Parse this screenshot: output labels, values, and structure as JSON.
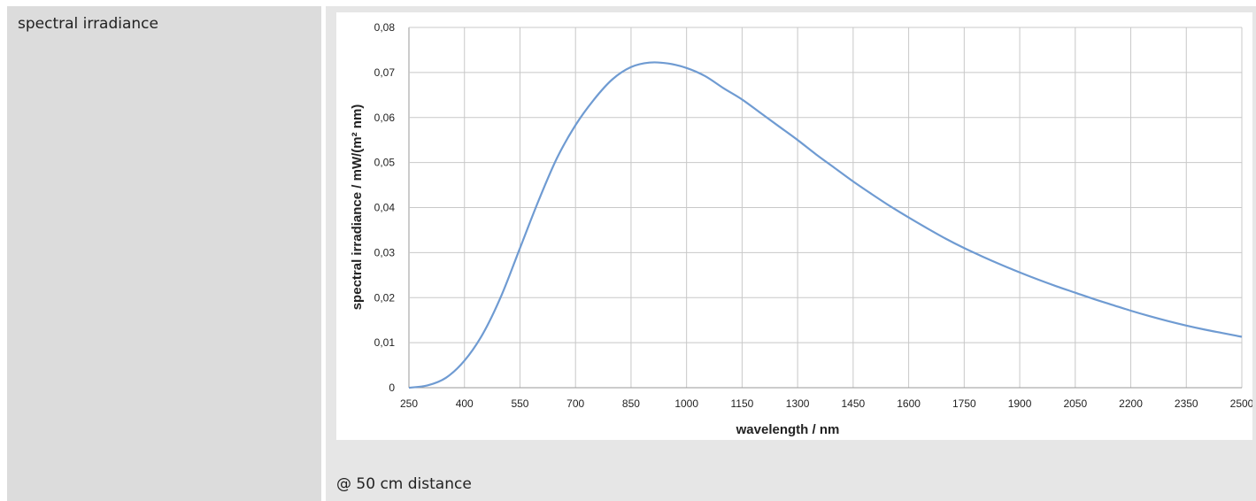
{
  "row_label": "spectral irradiance",
  "note": "@ 50 cm distance",
  "chart_data": {
    "type": "line",
    "xlabel": "wavelength / nm",
    "ylabel": "spectral irradiance / mW/(m² nm)",
    "xlim": [
      250,
      2500
    ],
    "ylim": [
      0,
      0.08
    ],
    "xticks": [
      250,
      400,
      550,
      700,
      850,
      1000,
      1150,
      1300,
      1450,
      1600,
      1750,
      1900,
      2050,
      2200,
      2350,
      2500
    ],
    "yticks": [
      0,
      0.01,
      0.02,
      0.03,
      0.04,
      0.05,
      0.06,
      0.07,
      0.08
    ],
    "ytick_labels": [
      "0",
      "0,01",
      "0,02",
      "0,03",
      "0,04",
      "0,05",
      "0,06",
      "0,07",
      "0,08"
    ],
    "grid": true,
    "line_color": "#6f9bd2",
    "series": [
      {
        "x": [
          250,
          300,
          350,
          400,
          450,
          500,
          550,
          600,
          650,
          700,
          750,
          800,
          850,
          900,
          950,
          1000,
          1050,
          1100,
          1150,
          1200,
          1250,
          1300,
          1350,
          1400,
          1450,
          1500,
          1550,
          1600,
          1650,
          1700,
          1750,
          1800,
          1850,
          1900,
          1950,
          2000,
          2050,
          2100,
          2150,
          2200,
          2250,
          2300,
          2350,
          2400,
          2450,
          2500
        ],
        "y": [
          0.0,
          0.0005,
          0.0022,
          0.006,
          0.012,
          0.0205,
          0.031,
          0.0415,
          0.051,
          0.0583,
          0.064,
          0.0685,
          0.0712,
          0.0722,
          0.072,
          0.071,
          0.0692,
          0.0665,
          0.064,
          0.061,
          0.058,
          0.055,
          0.0518,
          0.0488,
          0.0458,
          0.043,
          0.0403,
          0.0378,
          0.0354,
          0.0331,
          0.031,
          0.0291,
          0.0273,
          0.0256,
          0.024,
          0.0225,
          0.0211,
          0.0197,
          0.0184,
          0.0171,
          0.0159,
          0.0148,
          0.0138,
          0.0129,
          0.0121,
          0.0113
        ]
      }
    ]
  }
}
